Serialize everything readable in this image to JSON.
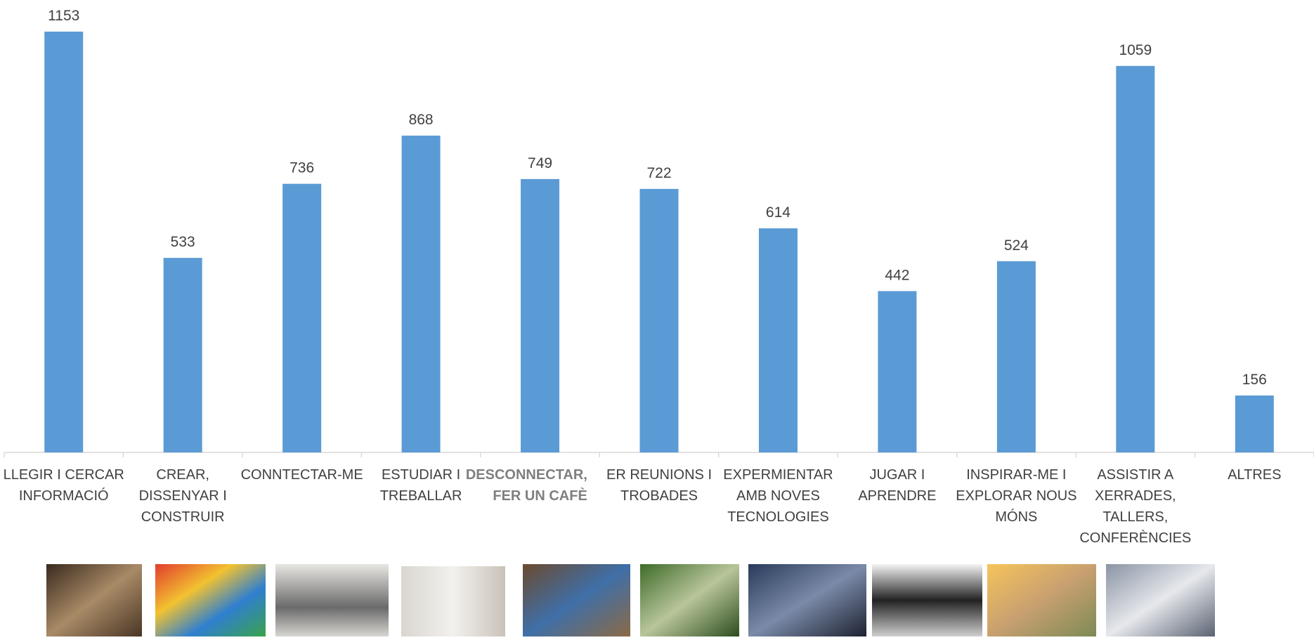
{
  "chart_data": {
    "type": "bar",
    "color": "#5b9bd5",
    "categories": [
      [
        "LLEGIR I CERCAR",
        "INFORMACIÓ"
      ],
      [
        "CREAR,",
        "DISSENYAR I",
        "CONSTRUIR"
      ],
      [
        "CONNTECTAR-ME"
      ],
      [
        "ESTUDIAR I",
        "TREBALLAR"
      ],
      [
        "DESCONNECTAR,",
        "FER UN CAFÈ"
      ],
      [
        "ER REUNIONS I",
        "TROBADES"
      ],
      [
        "EXPERMIENTAR",
        "AMB NOVES",
        "TECNOLOGIES"
      ],
      [
        "JUGAR I",
        "APRENDRE"
      ],
      [
        "INSPIRAR-ME I",
        "EXPLORAR NOUS",
        "MÓNS"
      ],
      [
        "ASSISTIR A",
        "XERRADES,",
        "TALLERS,",
        "CONFERÈNCIES"
      ],
      [
        "ALTRES"
      ]
    ],
    "values": [
      1153,
      533,
      736,
      868,
      749,
      722,
      614,
      442,
      524,
      1059,
      156
    ]
  }
}
